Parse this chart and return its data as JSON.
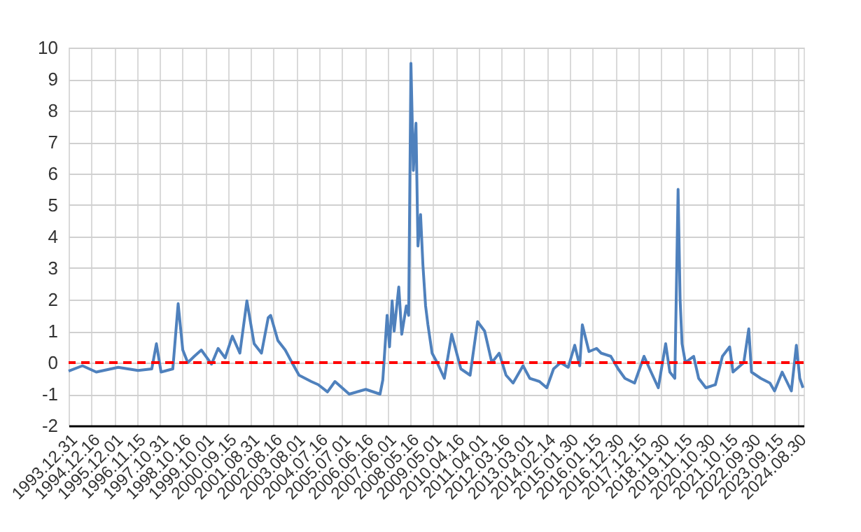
{
  "chart_data": {
    "type": "line",
    "x": [
      "1993-12-31",
      "1994-08-01",
      "1995-03-01",
      "1996-02-01",
      "1996-12-01",
      "1997-07-01",
      "1997-09-10",
      "1997-11-20",
      "1998-05-20",
      "1998-08-10",
      "1998-10-20",
      "1999-01-05",
      "1999-04-15",
      "1999-08-01",
      "2000-01-05",
      "2000-04-15",
      "2000-08-01",
      "2000-11-20",
      "2001-03-15",
      "2001-07-01",
      "2001-10-20",
      "2002-02-10",
      "2002-05-25",
      "2002-07-01",
      "2002-10-20",
      "2003-02-10",
      "2003-05-25",
      "2003-09-10",
      "2004-03-15",
      "2004-07-01",
      "2004-11-20",
      "2005-03-15",
      "2005-10-20",
      "2006-07-01",
      "2007-02-05",
      "2007-03-20",
      "2007-05-25",
      "2007-07-01",
      "2007-08-10",
      "2007-09-10",
      "2007-11-20",
      "2008-01-05",
      "2008-03-15",
      "2008-04-20",
      "2008-05-25",
      "2008-07-01",
      "2008-08-10",
      "2008-09-10",
      "2008-10-20",
      "2008-11-25",
      "2009-01-05",
      "2009-02-10",
      "2009-04-15",
      "2009-07-01",
      "2009-10-20",
      "2010-02-10",
      "2010-04-15",
      "2010-07-01",
      "2010-11-20",
      "2011-03-15",
      "2011-07-01",
      "2011-10-20",
      "2012-02-10",
      "2012-05-25",
      "2012-09-10",
      "2013-02-10",
      "2013-05-25",
      "2013-10-20",
      "2014-02-10",
      "2014-05-25",
      "2014-09-10",
      "2015-01-05",
      "2015-04-15",
      "2015-07-01",
      "2015-08-10",
      "2015-11-20",
      "2016-03-15",
      "2016-05-25",
      "2016-10-20",
      "2017-02-10",
      "2017-05-25",
      "2017-10-20",
      "2018-03-15",
      "2018-07-01",
      "2018-10-20",
      "2019-02-10",
      "2019-04-15",
      "2019-07-01",
      "2019-08-20",
      "2019-09-20",
      "2019-10-20",
      "2019-12-10",
      "2020-04-15",
      "2020-07-01",
      "2020-10-20",
      "2021-03-15",
      "2021-07-01",
      "2021-10-20",
      "2021-12-10",
      "2022-05-25",
      "2022-08-10",
      "2022-09-20",
      "2023-02-10",
      "2023-07-01",
      "2023-09-10",
      "2024-01-05",
      "2024-05-25",
      "2024-08-10",
      "2024-10-01",
      "2024-11-20"
    ],
    "series": [
      {
        "color": "#4f81bd",
        "values": [
          -0.27,
          -0.1,
          -0.3,
          -0.15,
          -0.25,
          -0.2,
          0.6,
          -0.3,
          -0.2,
          1.87,
          0.4,
          0.0,
          0.2,
          0.4,
          -0.05,
          0.45,
          0.15,
          0.84,
          0.3,
          1.96,
          0.6,
          0.3,
          1.43,
          1.5,
          0.7,
          0.4,
          0.0,
          -0.4,
          -0.6,
          -0.7,
          -0.93,
          -0.6,
          -1.0,
          -0.85,
          -1.0,
          -0.55,
          1.5,
          0.5,
          1.96,
          1.0,
          2.4,
          0.9,
          1.8,
          1.5,
          9.5,
          6.1,
          7.6,
          3.7,
          4.7,
          3.1,
          1.8,
          1.2,
          0.3,
          0.0,
          -0.5,
          0.9,
          0.4,
          -0.2,
          -0.4,
          1.3,
          1.0,
          0.0,
          0.3,
          -0.4,
          -0.65,
          -0.1,
          -0.5,
          -0.6,
          -0.8,
          -0.2,
          0.0,
          -0.15,
          0.55,
          -0.1,
          1.2,
          0.35,
          0.45,
          0.3,
          0.2,
          -0.2,
          -0.5,
          -0.65,
          0.2,
          -0.3,
          -0.8,
          0.6,
          -0.3,
          -0.5,
          5.5,
          2.0,
          0.6,
          0.0,
          0.2,
          -0.5,
          -0.8,
          -0.7,
          0.2,
          0.5,
          -0.3,
          0.0,
          1.07,
          -0.3,
          -0.5,
          -0.65,
          -0.9,
          -0.3,
          -0.9,
          0.55,
          -0.5,
          -0.8
        ]
      }
    ],
    "xlim": [
      "1993-12-31",
      "2024-11-29"
    ],
    "xticks": [
      {
        "value": "1993-12-31",
        "label": "1993.12.31"
      },
      {
        "value": "1994-12-16",
        "label": "1994.12.16"
      },
      {
        "value": "1995-12-01",
        "label": "1995.12.01"
      },
      {
        "value": "1996-11-15",
        "label": "1996.11.15"
      },
      {
        "value": "1997-10-31",
        "label": "1997.10.31"
      },
      {
        "value": "1998-10-16",
        "label": "1998.10.16"
      },
      {
        "value": "1999-10-01",
        "label": "1999.10.01"
      },
      {
        "value": "2000-09-15",
        "label": "2000.09.15"
      },
      {
        "value": "2001-08-31",
        "label": "2001.08.31"
      },
      {
        "value": "2002-08-16",
        "label": "2002.08.16"
      },
      {
        "value": "2003-08-01",
        "label": "2003.08.01"
      },
      {
        "value": "2004-07-16",
        "label": "2004.07.16"
      },
      {
        "value": "2005-07-01",
        "label": "2005.07.01"
      },
      {
        "value": "2006-06-16",
        "label": "2006.06.16"
      },
      {
        "value": "2007-06-01",
        "label": "2007.06.01"
      },
      {
        "value": "2008-05-16",
        "label": "2008.05.16"
      },
      {
        "value": "2009-05-01",
        "label": "2009.05.01"
      },
      {
        "value": "2010-04-16",
        "label": "2010.04.16"
      },
      {
        "value": "2011-04-01",
        "label": "2011.04.01"
      },
      {
        "value": "2012-03-16",
        "label": "2012.03.16"
      },
      {
        "value": "2013-03-01",
        "label": "2013.03.01"
      },
      {
        "value": "2014-02-14",
        "label": "2014.02.14"
      },
      {
        "value": "2015-01-30",
        "label": "2015.01.30"
      },
      {
        "value": "2016-01-15",
        "label": "2016.01.15"
      },
      {
        "value": "2016-12-30",
        "label": "2016.12.30"
      },
      {
        "value": "2017-12-15",
        "label": "2017.12.15"
      },
      {
        "value": "2018-11-30",
        "label": "2018.11.30"
      },
      {
        "value": "2019-11-15",
        "label": "2019.11.15"
      },
      {
        "value": "2020-10-30",
        "label": "2020.10.30"
      },
      {
        "value": "2021-10-15",
        "label": "2021.10.15"
      },
      {
        "value": "2022-09-30",
        "label": "2022.09.30"
      },
      {
        "value": "2023-09-15",
        "label": "2023.09.15"
      },
      {
        "value": "2024-08-30",
        "label": "2024.08.30"
      }
    ],
    "ylim": [
      -2,
      10
    ],
    "yticks": [
      -2,
      -1,
      0,
      1,
      2,
      3,
      4,
      5,
      6,
      7,
      8,
      9,
      10
    ],
    "grid": true,
    "marker": "none",
    "line_style": "solid",
    "ref_lines": [
      {
        "axis": "y",
        "value": 0,
        "color": "#ff0000",
        "line_style": "dashed"
      }
    ]
  }
}
